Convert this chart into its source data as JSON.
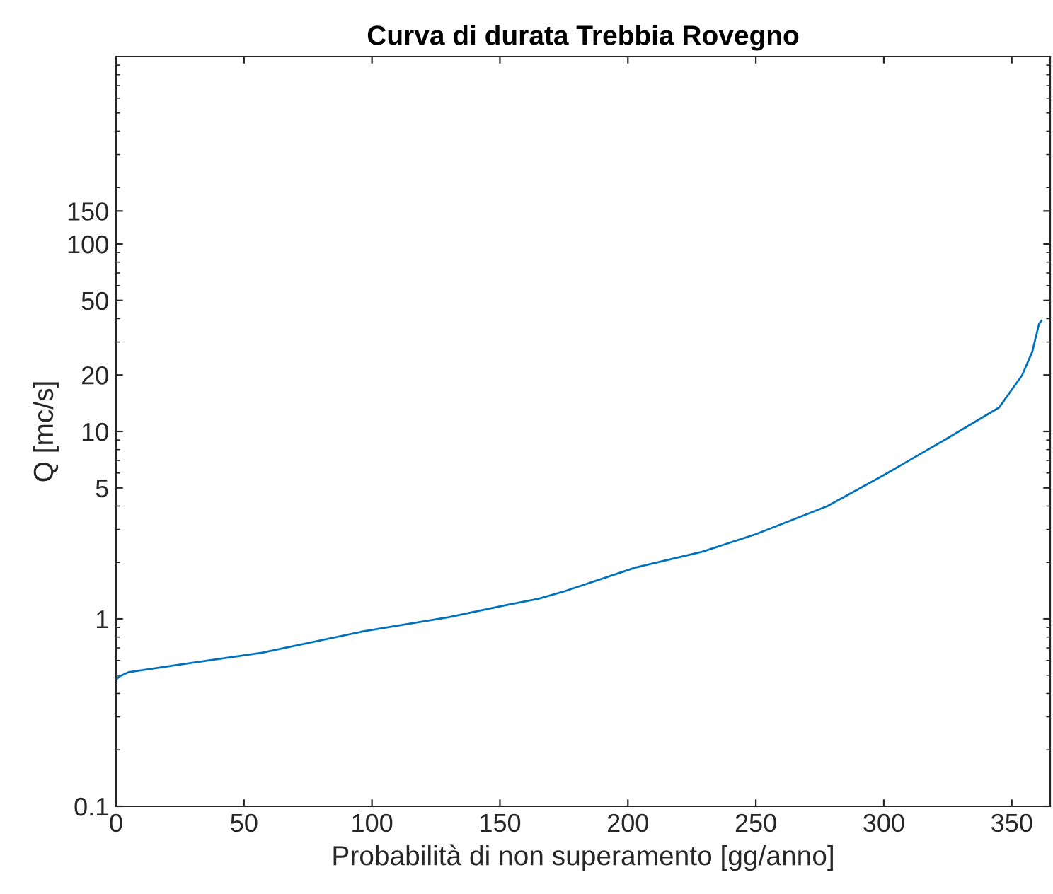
{
  "chart_data": {
    "type": "line",
    "title": "Curva di durata Trebbia Rovegno",
    "xlabel": "Probabilità di non superamento [gg/anno]",
    "ylabel": "Q [mc/s]",
    "series": [
      {
        "color": "#0072bd",
        "x": [
          0,
          1,
          5,
          25,
          57,
          97,
          130,
          152,
          165,
          175,
          203,
          229,
          250,
          278,
          300,
          324,
          345,
          354,
          358,
          360.7,
          361.6
        ],
        "values": [
          0.47,
          0.49,
          0.52,
          0.57,
          0.66,
          0.86,
          1.02,
          1.18,
          1.28,
          1.4,
          1.88,
          2.28,
          2.83,
          4.0,
          5.85,
          9.05,
          13.4,
          19.9,
          26.6,
          37.7,
          39
        ]
      }
    ],
    "log": "y",
    "xlim": [
      0,
      365
    ],
    "ylim": [
      0.1,
      1000
    ],
    "xticks": [
      0,
      50,
      100,
      150,
      200,
      250,
      300,
      350
    ],
    "yticks": [
      0.1,
      1,
      5,
      10,
      20,
      50,
      100,
      150
    ],
    "grid": false,
    "legend": false,
    "marker": "none",
    "line_style": "solid"
  }
}
